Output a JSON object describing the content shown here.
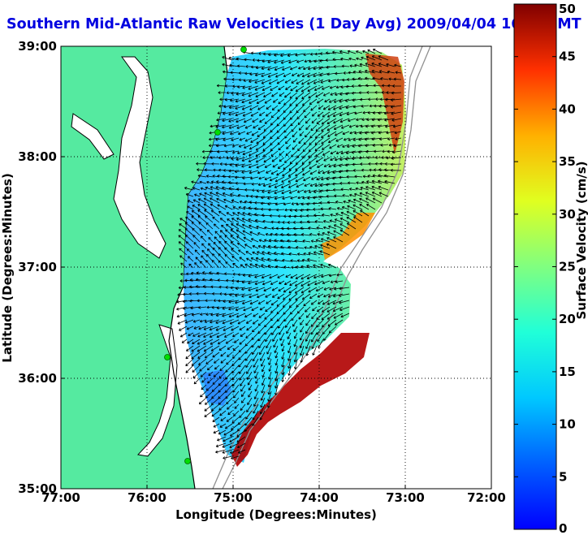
{
  "title": "Southern Mid-Atlantic Raw Velocities (1 Day Avg) 2009/04/04 1600 GMT",
  "map": {
    "x_axis": {
      "label": "Longitude (Degrees:Minutes)",
      "ticks": [
        "77:00",
        "76:00",
        "75:00",
        "74:00",
        "73:00",
        "72:00"
      ],
      "range": [
        -77,
        -72
      ]
    },
    "y_axis": {
      "label": "Latitude (Degrees:Minutes)",
      "ticks": [
        "39:00",
        "38:00",
        "37:00",
        "36:00",
        "35:00"
      ],
      "range": [
        35,
        39
      ]
    },
    "grid": "dotted",
    "colors": {
      "land": "#55eaa0",
      "water": "#ffffff",
      "coast": "#000000",
      "bathymetry": "#909090",
      "station": "#00dd00"
    }
  },
  "colorbar": {
    "label": "Surface Velocity (cm/s)",
    "min": 0,
    "max": 50,
    "ticks": [
      "0",
      "5",
      "10",
      "15",
      "20",
      "25",
      "30",
      "35",
      "40",
      "45",
      "50"
    ],
    "colormap": "jet"
  }
}
